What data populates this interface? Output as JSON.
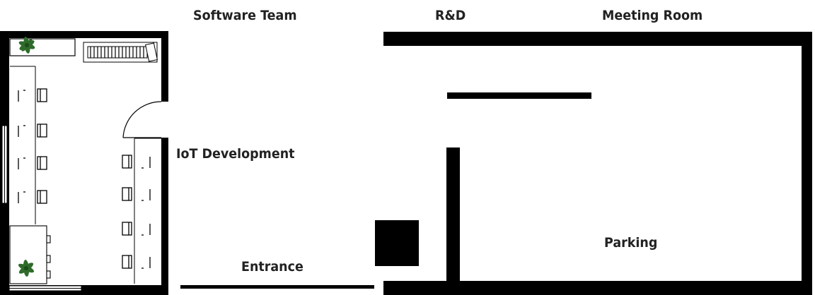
{
  "labels": {
    "software_team": "Software Team",
    "rd": "R&D",
    "meeting_room": "Meeting Room",
    "iot_development": "IoT Development",
    "entrance": "Entrance",
    "parking": "Parking"
  },
  "colors": {
    "wall": "#000000",
    "label": "#222222",
    "plant": "#2e6b2a",
    "background": "#ffffff"
  },
  "icons": [
    "plant-icon",
    "radiator-icon",
    "door-swing-icon",
    "desk-icon",
    "chair-icon"
  ]
}
